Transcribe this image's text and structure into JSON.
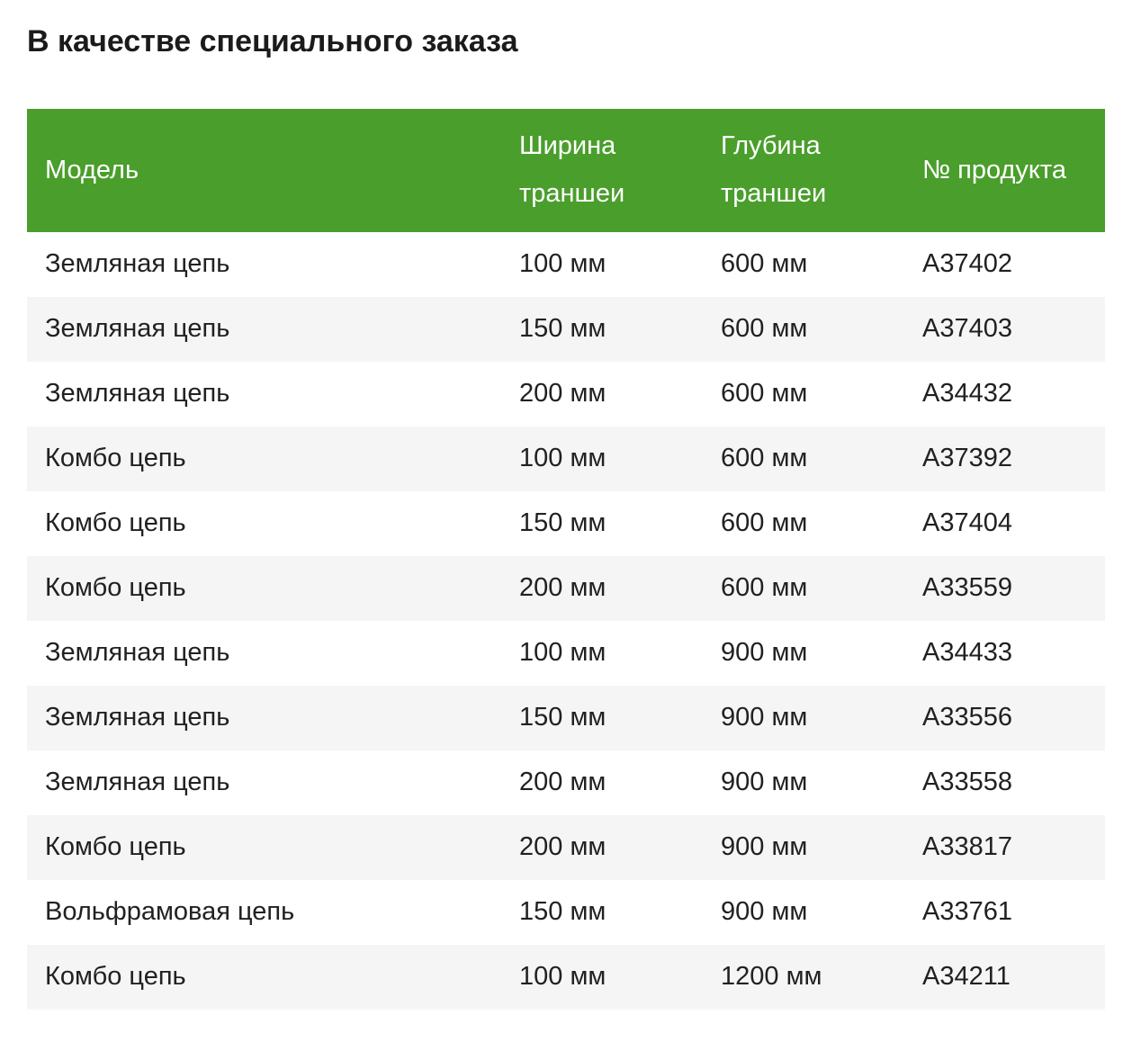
{
  "page": {
    "title": "В качестве специального заказа"
  },
  "colors": {
    "header_bg": "#4A9E2C",
    "header_text": "#FFFFFF",
    "stripe_bg": "#F5F5F5",
    "body_text": "#212121",
    "title_text": "#1B1B1B",
    "page_bg": "#FFFFFF"
  },
  "table": {
    "columns": [
      {
        "key": "model",
        "label": "Модель"
      },
      {
        "key": "width",
        "label": "Ширина траншеи"
      },
      {
        "key": "depth",
        "label": "Глубина траншеи"
      },
      {
        "key": "product",
        "label": "№ продукта"
      }
    ],
    "rows": [
      [
        "Земляная цепь",
        "100 мм",
        "600 мм",
        "A37402"
      ],
      [
        "Земляная цепь",
        "150 мм",
        "600 мм",
        "A37403"
      ],
      [
        "Земляная цепь",
        "200 мм",
        "600 мм",
        "A34432"
      ],
      [
        "Комбо цепь",
        "100 мм",
        "600 мм",
        "A37392"
      ],
      [
        "Комбо цепь",
        "150 мм",
        "600 мм",
        "A37404"
      ],
      [
        "Комбо цепь",
        "200 мм",
        "600 мм",
        "A33559"
      ],
      [
        "Земляная цепь",
        "100 мм",
        "900 мм",
        "A34433"
      ],
      [
        "Земляная цепь",
        "150 мм",
        "900 мм",
        "A33556"
      ],
      [
        "Земляная цепь",
        "200 мм",
        "900 мм",
        "A33558"
      ],
      [
        "Комбо цепь",
        "200 мм",
        "900 мм",
        "A33817"
      ],
      [
        "Вольфрамовая цепь",
        "150 мм",
        "900 мм",
        "A33761"
      ],
      [
        "Комбо цепь",
        "100 мм",
        "1200 мм",
        "A34211"
      ]
    ]
  }
}
